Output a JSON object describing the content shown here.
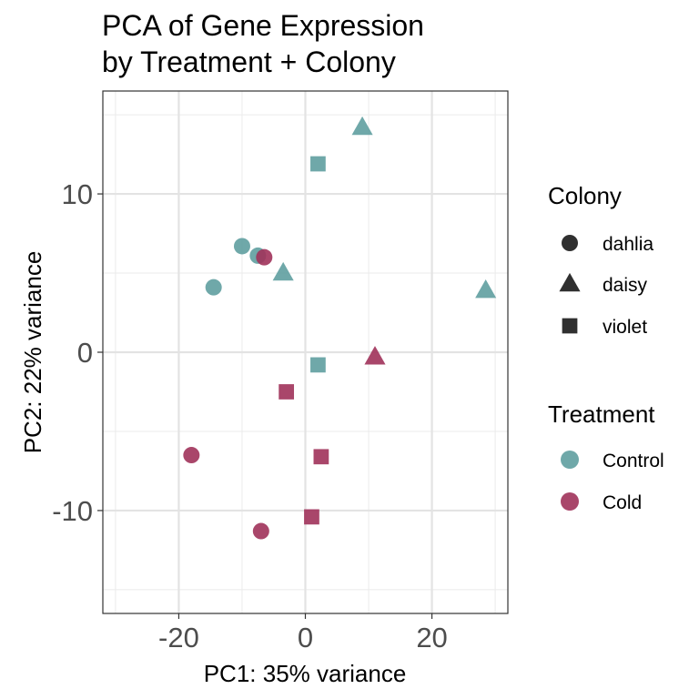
{
  "chart_data": {
    "type": "scatter",
    "title": [
      "PCA of Gene Expression",
      "by Treatment + Colony"
    ],
    "xlabel": "PC1: 35% variance",
    "ylabel": "PC2: 22% variance",
    "xlim": [
      -32,
      32
    ],
    "ylim": [
      -16.5,
      16.5
    ],
    "x_ticks": [
      -20,
      0,
      20
    ],
    "x_tick_labels": [
      "-20",
      "0",
      "20"
    ],
    "y_ticks": [
      -10,
      0,
      10
    ],
    "y_tick_labels": [
      "-10",
      "0",
      "10"
    ],
    "grid": true,
    "legend_position": "right",
    "legends": [
      {
        "title": "Colony",
        "entries": [
          {
            "label": "dahlia",
            "shape": "circle"
          },
          {
            "label": "daisy",
            "shape": "triangle"
          },
          {
            "label": "violet",
            "shape": "square"
          }
        ]
      },
      {
        "title": "Treatment",
        "entries": [
          {
            "label": "Control",
            "color": "#5f9ea0"
          },
          {
            "label": "Cold",
            "color": "#a0325a"
          }
        ]
      }
    ],
    "points": [
      {
        "x": 9.0,
        "y": 14.2,
        "colony": "daisy",
        "treatment": "Control"
      },
      {
        "x": 2.0,
        "y": 11.9,
        "colony": "violet",
        "treatment": "Control"
      },
      {
        "x": -10.0,
        "y": 6.7,
        "colony": "dahlia",
        "treatment": "Control"
      },
      {
        "x": -7.5,
        "y": 6.1,
        "colony": "dahlia",
        "treatment": "Control"
      },
      {
        "x": -3.5,
        "y": 5.0,
        "colony": "daisy",
        "treatment": "Control"
      },
      {
        "x": -14.5,
        "y": 4.1,
        "colony": "dahlia",
        "treatment": "Control"
      },
      {
        "x": 28.5,
        "y": 3.9,
        "colony": "daisy",
        "treatment": "Control"
      },
      {
        "x": 2.0,
        "y": -0.8,
        "colony": "violet",
        "treatment": "Control"
      },
      {
        "x": -6.5,
        "y": 6.0,
        "colony": "dahlia",
        "treatment": "Cold"
      },
      {
        "x": 11.0,
        "y": -0.3,
        "colony": "daisy",
        "treatment": "Cold"
      },
      {
        "x": -3.0,
        "y": -2.5,
        "colony": "violet",
        "treatment": "Cold"
      },
      {
        "x": -18.0,
        "y": -6.5,
        "colony": "dahlia",
        "treatment": "Cold"
      },
      {
        "x": 2.5,
        "y": -6.6,
        "colony": "violet",
        "treatment": "Cold"
      },
      {
        "x": 1.0,
        "y": -10.4,
        "colony": "violet",
        "treatment": "Cold"
      },
      {
        "x": -7.0,
        "y": -11.3,
        "colony": "dahlia",
        "treatment": "Cold"
      }
    ]
  }
}
